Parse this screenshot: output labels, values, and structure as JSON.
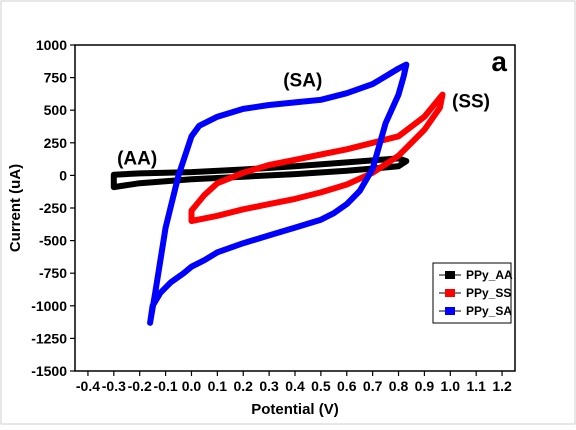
{
  "chart_data": {
    "type": "line",
    "panel_label": "a",
    "xlabel": "Potential (V)",
    "ylabel": "Current (uA)",
    "xlim": [
      -0.45,
      1.25
    ],
    "ylim": [
      -1500,
      1000
    ],
    "x_ticks": [
      {
        "value": -0.4,
        "label": "-0.4"
      },
      {
        "value": -0.3,
        "label": "-0.3"
      },
      {
        "value": -0.2,
        "label": "-0.2"
      },
      {
        "value": -0.1,
        "label": "-0.1"
      },
      {
        "value": 0.0,
        "label": "0.0"
      },
      {
        "value": 0.1,
        "label": "0.1"
      },
      {
        "value": 0.2,
        "label": "0.2"
      },
      {
        "value": 0.3,
        "label": "0.3"
      },
      {
        "value": 0.4,
        "label": "0.4"
      },
      {
        "value": 0.5,
        "label": "0.5"
      },
      {
        "value": 0.6,
        "label": "0.6"
      },
      {
        "value": 0.7,
        "label": "0.7"
      },
      {
        "value": 0.8,
        "label": "0.8"
      },
      {
        "value": 0.9,
        "label": "0.9"
      },
      {
        "value": 1.0,
        "label": "1.0"
      },
      {
        "value": 1.1,
        "label": "1.1"
      },
      {
        "value": 1.2,
        "label": "1.2"
      }
    ],
    "y_ticks": [
      {
        "value": 1000,
        "label": "1000"
      },
      {
        "value": 750,
        "label": "750"
      },
      {
        "value": 500,
        "label": "500"
      },
      {
        "value": 250,
        "label": "250"
      },
      {
        "value": 0,
        "label": "0"
      },
      {
        "value": -250,
        "label": "-250"
      },
      {
        "value": -500,
        "label": "-500"
      },
      {
        "value": -750,
        "label": "-750"
      },
      {
        "value": -1000,
        "label": "-1000"
      },
      {
        "value": -1250,
        "label": "-1250"
      },
      {
        "value": -1500,
        "label": "-1500"
      }
    ],
    "grid": false,
    "legend_position": "bottom-right",
    "series": [
      {
        "name": "PPy_AA",
        "color": "#000000",
        "x": [
          -0.3,
          -0.2,
          -0.1,
          0.0,
          0.2,
          0.4,
          0.6,
          0.8,
          0.83,
          0.8,
          0.6,
          0.4,
          0.2,
          0.0,
          -0.1,
          -0.2,
          -0.3,
          -0.3
        ],
        "y": [
          -90,
          -60,
          -45,
          -30,
          -10,
          10,
          35,
          70,
          110,
          130,
          100,
          70,
          45,
          25,
          20,
          15,
          5,
          -90
        ]
      },
      {
        "name": "PPy_SS",
        "color": "#ff0000",
        "x": [
          0.0,
          0.05,
          0.1,
          0.2,
          0.3,
          0.4,
          0.5,
          0.6,
          0.7,
          0.8,
          0.9,
          0.96,
          0.97,
          0.9,
          0.8,
          0.7,
          0.6,
          0.5,
          0.4,
          0.3,
          0.2,
          0.1,
          0.05,
          0.0,
          0.0
        ],
        "y": [
          -350,
          -330,
          -310,
          -260,
          -220,
          -180,
          -130,
          -70,
          20,
          150,
          350,
          520,
          620,
          450,
          300,
          250,
          200,
          160,
          120,
          80,
          20,
          -60,
          -150,
          -270,
          -350
        ]
      },
      {
        "name": "PPy_SA",
        "color": "#0000ff",
        "x": [
          -0.16,
          -0.15,
          -0.12,
          -0.08,
          -0.03,
          0.0,
          0.05,
          0.1,
          0.2,
          0.3,
          0.4,
          0.5,
          0.55,
          0.6,
          0.65,
          0.7,
          0.75,
          0.8,
          0.82,
          0.83,
          0.8,
          0.75,
          0.7,
          0.6,
          0.5,
          0.4,
          0.3,
          0.2,
          0.1,
          0.03,
          0.0,
          -0.05,
          -0.1,
          -0.14,
          -0.16
        ],
        "y": [
          -1130,
          -1000,
          -900,
          -820,
          -750,
          -700,
          -650,
          -590,
          -520,
          -460,
          -400,
          -340,
          -290,
          -220,
          -120,
          50,
          400,
          620,
          760,
          850,
          820,
          760,
          700,
          630,
          580,
          560,
          540,
          510,
          450,
          380,
          300,
          0,
          -400,
          -900,
          -1130
        ]
      }
    ],
    "annotations": [
      {
        "text": "(AA)",
        "x": -0.21,
        "y": 85
      },
      {
        "text": "(SA)",
        "x": 0.43,
        "y": 680
      },
      {
        "text": "(SS)",
        "x": 1.08,
        "y": 520
      }
    ]
  }
}
